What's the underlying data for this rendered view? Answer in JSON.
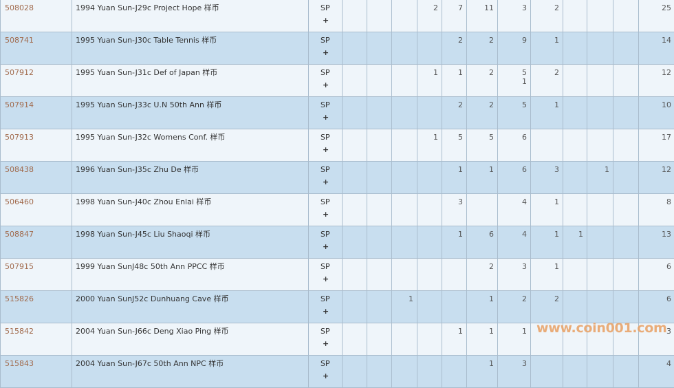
{
  "table": {
    "rows": [
      {
        "id": "508028",
        "desc": "1994 Yuan Sun-J29c Project Hope 样币",
        "grade": "SP",
        "plus": "+",
        "cells": [
          "",
          "",
          "",
          "2",
          "7",
          "11",
          "3",
          "2",
          "",
          "",
          "",
          ""
        ],
        "total": "25"
      },
      {
        "id": "508741",
        "desc": "1995 Yuan Sun-J30c Table Tennis 样币",
        "grade": "SP",
        "plus": "+",
        "cells": [
          "",
          "",
          "",
          "",
          "2",
          "2",
          "9",
          "1",
          "",
          "",
          "",
          ""
        ],
        "total": "14"
      },
      {
        "id": "507912",
        "desc": "1995 Yuan Sun-J31c Def of Japan 样币",
        "grade": "SP",
        "plus": "+",
        "cells": [
          "",
          "",
          "",
          "1",
          "1",
          "2",
          "5\n1",
          "2",
          "",
          "",
          "",
          ""
        ],
        "total": "12"
      },
      {
        "id": "507914",
        "desc": "1995 Yuan Sun-J33c U.N 50th Ann 样币",
        "grade": "SP",
        "plus": "+",
        "cells": [
          "",
          "",
          "",
          "",
          "2",
          "2",
          "5",
          "1",
          "",
          "",
          "",
          ""
        ],
        "total": "10"
      },
      {
        "id": "507913",
        "desc": "1995 Yuan Sun-J32c Womens Conf. 样币",
        "grade": "SP",
        "plus": "+",
        "cells": [
          "",
          "",
          "",
          "1",
          "5",
          "5",
          "6",
          "",
          "",
          "",
          "",
          ""
        ],
        "total": "17"
      },
      {
        "id": "508438",
        "desc": "1996 Yuan Sun-J35c Zhu De 样币",
        "grade": "SP",
        "plus": "+",
        "cells": [
          "",
          "",
          "",
          "",
          "1",
          "1",
          "6",
          "3",
          "",
          "1",
          "",
          ""
        ],
        "total": "12"
      },
      {
        "id": "506460",
        "desc": "1998 Yuan Sun-J40c Zhou Enlai 样币",
        "grade": "SP",
        "plus": "+",
        "cells": [
          "",
          "",
          "",
          "",
          "3",
          "",
          "4",
          "1",
          "",
          "",
          "",
          ""
        ],
        "total": "8"
      },
      {
        "id": "508847",
        "desc": "1998 Yuan Sun-J45c Liu Shaoqi 样币",
        "grade": "SP",
        "plus": "+",
        "cells": [
          "",
          "",
          "",
          "",
          "1",
          "6",
          "4",
          "1",
          "1",
          "",
          "",
          ""
        ],
        "total": "13"
      },
      {
        "id": "507915",
        "desc": "1999 Yuan SunJ48c 50th Ann PPCC 样币",
        "grade": "SP",
        "plus": "+",
        "cells": [
          "",
          "",
          "",
          "",
          "",
          "2",
          "3",
          "1",
          "",
          "",
          "",
          ""
        ],
        "total": "6"
      },
      {
        "id": "515826",
        "desc": "2000 Yuan SunJ52c Dunhuang Cave 样币",
        "grade": "SP",
        "plus": "+",
        "cells": [
          "",
          "",
          "1",
          "",
          "",
          "1",
          "2",
          "2",
          "",
          "",
          "",
          ""
        ],
        "total": "6"
      },
      {
        "id": "515842",
        "desc": "2004 Yuan Sun-J66c Deng Xiao Ping 样币",
        "grade": "SP",
        "plus": "+",
        "cells": [
          "",
          "",
          "",
          "",
          "1",
          "1",
          "1",
          "",
          "",
          "",
          "",
          ""
        ],
        "total": "3"
      },
      {
        "id": "515843",
        "desc": "2004 Yuan Sun-J67c 50th Ann NPC 样币",
        "grade": "SP",
        "plus": "+",
        "cells": [
          "",
          "",
          "",
          "",
          "",
          "1",
          "3",
          "",
          "",
          "",
          "",
          ""
        ],
        "total": "4"
      }
    ]
  },
  "watermark": "www.coin001.com",
  "colors": {
    "id_link": "#a16a4c",
    "row_odd": "#eff5fa",
    "row_even": "#c8deef",
    "border": "#a9bccd",
    "watermark": "#e9a56c"
  }
}
